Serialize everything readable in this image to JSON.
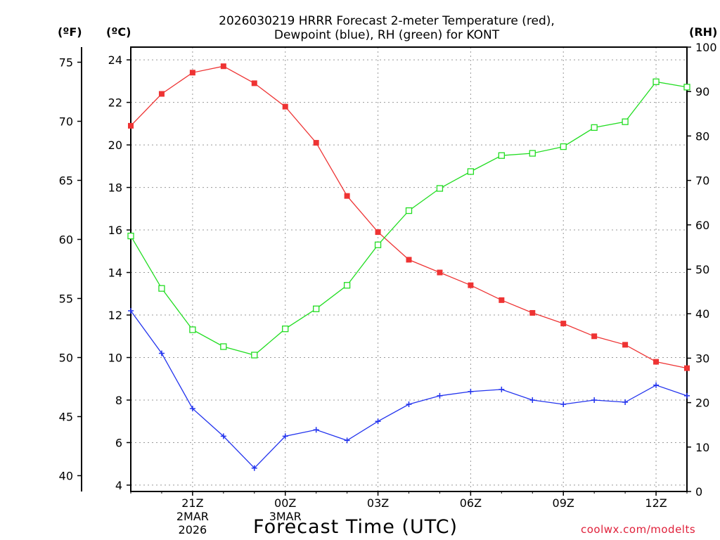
{
  "title_line1": "2026030219 HRRR Forecast 2-meter Temperature (red),",
  "title_line2": "Dewpoint (blue), RH (green) for KONT",
  "units": {
    "fahrenheit": "(ºF)",
    "celsius": "(ºC)",
    "rh": "(RH)"
  },
  "xlabel": "Forecast Time (UTC)",
  "credit": "coolwx.com/modelts",
  "chart_data": {
    "type": "line",
    "title": "2026030219 HRRR Forecast 2-meter Temperature (red), Dewpoint (blue), RH (green) for KONT",
    "xlabel": "Forecast Time (UTC)",
    "x_hours": [
      0,
      1,
      2,
      3,
      4,
      5,
      6,
      7,
      8,
      9,
      10,
      11,
      12,
      13,
      14,
      15,
      16,
      17,
      18
    ],
    "x_ticks": [
      {
        "hour": 2,
        "lines": [
          "21Z",
          "2MAR",
          "2026"
        ]
      },
      {
        "hour": 5,
        "lines": [
          "00Z",
          "3MAR"
        ]
      },
      {
        "hour": 8,
        "lines": [
          "03Z"
        ]
      },
      {
        "hour": 11,
        "lines": [
          "06Z"
        ]
      },
      {
        "hour": 14,
        "lines": [
          "09Z"
        ]
      },
      {
        "hour": 17,
        "lines": [
          "12Z"
        ]
      }
    ],
    "xlim": [
      0,
      18
    ],
    "y_celsius": {
      "lim": [
        3.7,
        24.6
      ],
      "ticks": [
        4,
        6,
        8,
        10,
        12,
        14,
        16,
        18,
        20,
        22,
        24
      ]
    },
    "y_fahrenheit": {
      "ticks": [
        40,
        45,
        50,
        55,
        60,
        65,
        70,
        75
      ]
    },
    "y_rh": {
      "lim": [
        0,
        100
      ],
      "ticks": [
        0,
        10,
        20,
        30,
        40,
        50,
        60,
        70,
        80,
        90,
        100
      ]
    },
    "series": [
      {
        "name": "Temperature",
        "axis": "celsius",
        "color": "#ee3333",
        "marker": "filled-square",
        "values": [
          20.9,
          22.4,
          23.4,
          23.7,
          22.9,
          21.8,
          20.1,
          17.6,
          15.9,
          14.6,
          14.0,
          13.4,
          12.7,
          12.1,
          11.6,
          11.0,
          10.6,
          9.8,
          9.5
        ]
      },
      {
        "name": "Dewpoint",
        "axis": "celsius",
        "color": "#2233ee",
        "marker": "plus",
        "values": [
          12.2,
          10.2,
          7.6,
          6.3,
          4.8,
          6.3,
          6.6,
          6.1,
          7.0,
          7.8,
          8.2,
          8.4,
          8.5,
          8.0,
          7.8,
          8.0,
          7.9,
          8.7,
          8.2
        ]
      },
      {
        "name": "RH",
        "axis": "rh",
        "color": "#22dd22",
        "marker": "open-square",
        "values": [
          57.5,
          45.7,
          36.4,
          32.6,
          30.7,
          36.6,
          41.1,
          46.4,
          55.5,
          63.2,
          68.2,
          72.0,
          75.6,
          76.1,
          77.6,
          81.9,
          83.2,
          92.2,
          91.0
        ]
      }
    ]
  }
}
